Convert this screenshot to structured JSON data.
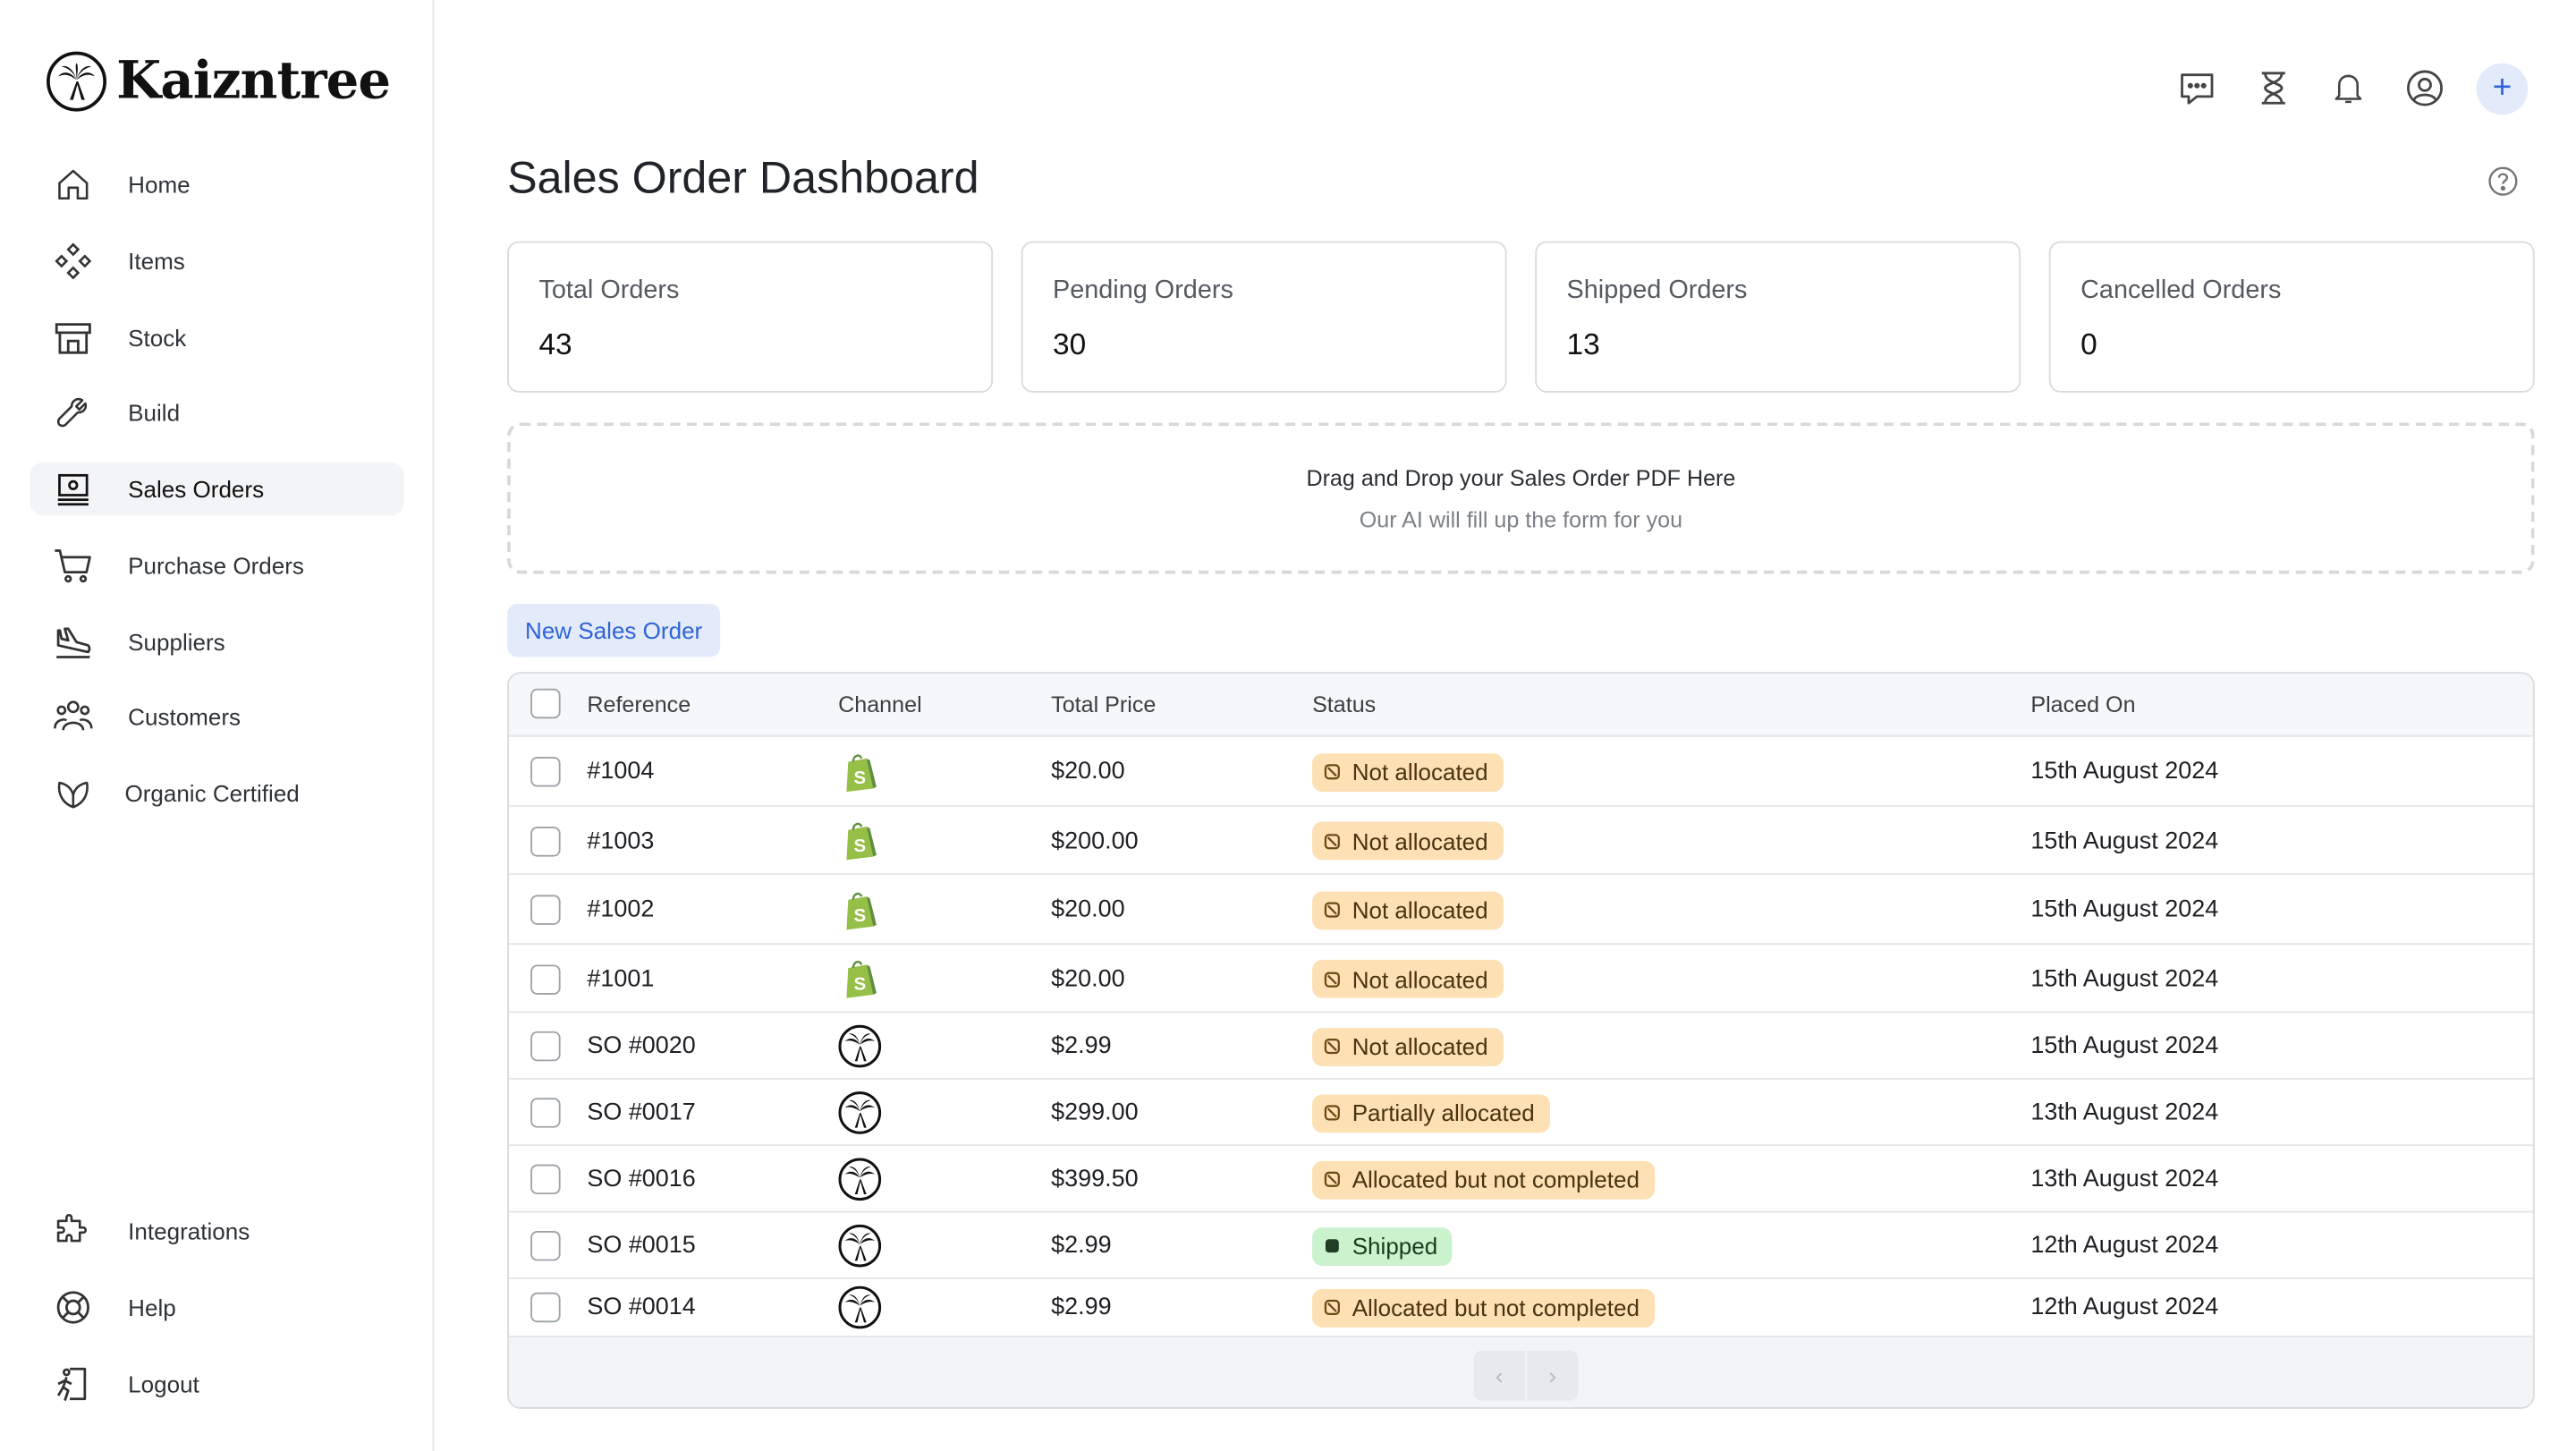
{
  "brand": {
    "name": "Kaizntree"
  },
  "sidebar": {
    "items": [
      {
        "label": "Home"
      },
      {
        "label": "Items"
      },
      {
        "label": "Stock"
      },
      {
        "label": "Build"
      },
      {
        "label": "Sales Orders"
      },
      {
        "label": "Purchase Orders"
      },
      {
        "label": "Suppliers"
      },
      {
        "label": "Customers"
      },
      {
        "label": "Organic Certified"
      }
    ],
    "bottom_items": [
      {
        "label": "Integrations"
      },
      {
        "label": "Help"
      },
      {
        "label": "Logout"
      }
    ],
    "active": "Sales Orders"
  },
  "page": {
    "title": "Sales Order Dashboard"
  },
  "stats": [
    {
      "label": "Total Orders",
      "value": "43"
    },
    {
      "label": "Pending Orders",
      "value": "30"
    },
    {
      "label": "Shipped Orders",
      "value": "13"
    },
    {
      "label": "Cancelled Orders",
      "value": "0"
    }
  ],
  "dropzone": {
    "title": "Drag and Drop your Sales Order PDF Here",
    "subtitle": "Our AI will fill up the form for you"
  },
  "actions": {
    "new_order": "New Sales Order"
  },
  "table": {
    "columns": [
      "Reference",
      "Channel",
      "Total Price",
      "Status",
      "Placed On"
    ],
    "rows": [
      {
        "reference": "#1004",
        "channel": "shopify",
        "total": "$20.00",
        "status": "Not allocated",
        "status_kind": "warn",
        "placed_on": "15th August 2024"
      },
      {
        "reference": "#1003",
        "channel": "shopify",
        "total": "$200.00",
        "status": "Not allocated",
        "status_kind": "warn",
        "placed_on": "15th August 2024"
      },
      {
        "reference": "#1002",
        "channel": "shopify",
        "total": "$20.00",
        "status": "Not allocated",
        "status_kind": "warn",
        "placed_on": "15th August 2024"
      },
      {
        "reference": "#1001",
        "channel": "shopify",
        "total": "$20.00",
        "status": "Not allocated",
        "status_kind": "warn",
        "placed_on": "15th August 2024"
      },
      {
        "reference": "SO #0020",
        "channel": "kaizntree",
        "total": "$2.99",
        "status": "Not allocated",
        "status_kind": "warn",
        "placed_on": "15th August 2024"
      },
      {
        "reference": "SO #0017",
        "channel": "kaizntree",
        "total": "$299.00",
        "status": "Partially allocated",
        "status_kind": "warn",
        "placed_on": "13th August 2024"
      },
      {
        "reference": "SO #0016",
        "channel": "kaizntree",
        "total": "$399.50",
        "status": "Allocated but not completed",
        "status_kind": "warn",
        "placed_on": "13th August 2024"
      },
      {
        "reference": "SO #0015",
        "channel": "kaizntree",
        "total": "$2.99",
        "status": "Shipped",
        "status_kind": "ok",
        "placed_on": "12th August 2024"
      },
      {
        "reference": "SO #0014",
        "channel": "kaizntree",
        "total": "$2.99",
        "status": "Allocated but not completed",
        "status_kind": "warn",
        "placed_on": "12th August 2024"
      }
    ]
  },
  "pagination": {
    "prev_icon": "chevron-left-icon",
    "next_icon": "chevron-right-icon"
  },
  "colors": {
    "accent": "#2f63d6",
    "accent_bg": "#e3ebfb",
    "warn_badge": "#fde0b4",
    "ok_badge": "#c9f2cd",
    "shopify_green": "#95bf47"
  }
}
